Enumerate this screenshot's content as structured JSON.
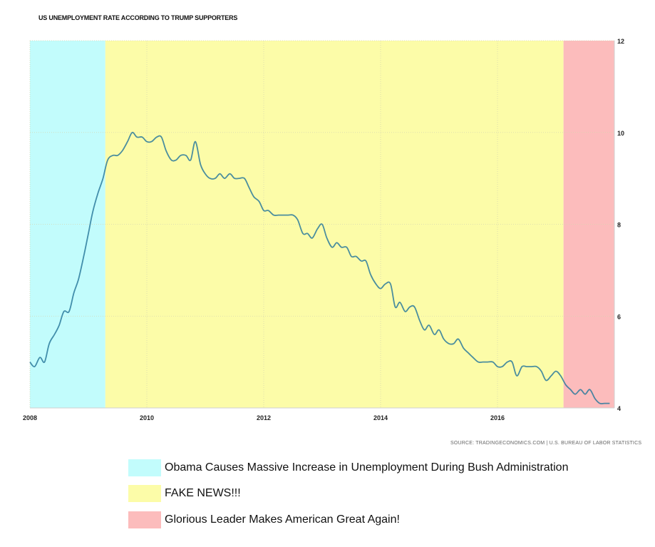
{
  "chart_data": {
    "type": "line",
    "title": "US UNEMPLOYMENT RATE ACCORDING TO TRUMP SUPPORTERS",
    "source": "SOURCE: TRADINGECONOMICS.COM  |  U.S. BUREAU OF LABOR STATISTICS",
    "xlabel": "",
    "ylabel": "",
    "xlim": [
      2008.0,
      2018.0
    ],
    "ylim": [
      4,
      12
    ],
    "x_ticks": [
      "2008",
      "2010",
      "2012",
      "2014",
      "2016"
    ],
    "y_ticks": [
      "4",
      "6",
      "8",
      "10",
      "12"
    ],
    "y_axis_side": "right",
    "grid": true,
    "series": [
      {
        "points": [
          [
            2008.0,
            5.0
          ],
          [
            2008.08,
            4.9
          ],
          [
            2008.17,
            5.1
          ],
          [
            2008.25,
            5.0
          ],
          [
            2008.33,
            5.4
          ],
          [
            2008.42,
            5.6
          ],
          [
            2008.5,
            5.8
          ],
          [
            2008.58,
            6.1
          ],
          [
            2008.67,
            6.1
          ],
          [
            2008.75,
            6.5
          ],
          [
            2008.83,
            6.8
          ],
          [
            2008.92,
            7.3
          ],
          [
            2009.0,
            7.8
          ],
          [
            2009.08,
            8.3
          ],
          [
            2009.17,
            8.7
          ],
          [
            2009.25,
            9.0
          ],
          [
            2009.33,
            9.4
          ],
          [
            2009.42,
            9.5
          ],
          [
            2009.5,
            9.5
          ],
          [
            2009.58,
            9.6
          ],
          [
            2009.67,
            9.8
          ],
          [
            2009.75,
            10.0
          ],
          [
            2009.83,
            9.9
          ],
          [
            2009.92,
            9.9
          ],
          [
            2010.0,
            9.8
          ],
          [
            2010.08,
            9.8
          ],
          [
            2010.17,
            9.9
          ],
          [
            2010.25,
            9.9
          ],
          [
            2010.33,
            9.6
          ],
          [
            2010.42,
            9.4
          ],
          [
            2010.5,
            9.4
          ],
          [
            2010.58,
            9.5
          ],
          [
            2010.67,
            9.5
          ],
          [
            2010.75,
            9.4
          ],
          [
            2010.83,
            9.8
          ],
          [
            2010.92,
            9.3
          ],
          [
            2011.0,
            9.1
          ],
          [
            2011.08,
            9.0
          ],
          [
            2011.17,
            9.0
          ],
          [
            2011.25,
            9.1
          ],
          [
            2011.33,
            9.0
          ],
          [
            2011.42,
            9.1
          ],
          [
            2011.5,
            9.0
          ],
          [
            2011.58,
            9.0
          ],
          [
            2011.67,
            9.0
          ],
          [
            2011.75,
            8.8
          ],
          [
            2011.83,
            8.6
          ],
          [
            2011.92,
            8.5
          ],
          [
            2012.0,
            8.3
          ],
          [
            2012.08,
            8.3
          ],
          [
            2012.17,
            8.2
          ],
          [
            2012.25,
            8.2
          ],
          [
            2012.33,
            8.2
          ],
          [
            2012.42,
            8.2
          ],
          [
            2012.5,
            8.2
          ],
          [
            2012.58,
            8.1
          ],
          [
            2012.67,
            7.8
          ],
          [
            2012.75,
            7.8
          ],
          [
            2012.83,
            7.7
          ],
          [
            2012.92,
            7.9
          ],
          [
            2013.0,
            8.0
          ],
          [
            2013.08,
            7.7
          ],
          [
            2013.17,
            7.5
          ],
          [
            2013.25,
            7.6
          ],
          [
            2013.33,
            7.5
          ],
          [
            2013.42,
            7.5
          ],
          [
            2013.5,
            7.3
          ],
          [
            2013.58,
            7.3
          ],
          [
            2013.67,
            7.2
          ],
          [
            2013.75,
            7.2
          ],
          [
            2013.83,
            6.9
          ],
          [
            2013.92,
            6.7
          ],
          [
            2014.0,
            6.6
          ],
          [
            2014.08,
            6.7
          ],
          [
            2014.17,
            6.7
          ],
          [
            2014.25,
            6.2
          ],
          [
            2014.33,
            6.3
          ],
          [
            2014.42,
            6.1
          ],
          [
            2014.5,
            6.2
          ],
          [
            2014.58,
            6.2
          ],
          [
            2014.67,
            5.9
          ],
          [
            2014.75,
            5.7
          ],
          [
            2014.83,
            5.8
          ],
          [
            2014.92,
            5.6
          ],
          [
            2015.0,
            5.7
          ],
          [
            2015.08,
            5.5
          ],
          [
            2015.17,
            5.4
          ],
          [
            2015.25,
            5.4
          ],
          [
            2015.33,
            5.5
          ],
          [
            2015.42,
            5.3
          ],
          [
            2015.5,
            5.2
          ],
          [
            2015.58,
            5.1
          ],
          [
            2015.67,
            5.0
          ],
          [
            2015.75,
            5.0
          ],
          [
            2015.83,
            5.0
          ],
          [
            2015.92,
            5.0
          ],
          [
            2016.0,
            4.9
          ],
          [
            2016.08,
            4.9
          ],
          [
            2016.17,
            5.0
          ],
          [
            2016.25,
            5.0
          ],
          [
            2016.33,
            4.7
          ],
          [
            2016.42,
            4.9
          ],
          [
            2016.5,
            4.9
          ],
          [
            2016.58,
            4.9
          ],
          [
            2016.67,
            4.9
          ],
          [
            2016.75,
            4.8
          ],
          [
            2016.83,
            4.6
          ],
          [
            2016.92,
            4.7
          ],
          [
            2017.0,
            4.8
          ],
          [
            2017.08,
            4.7
          ],
          [
            2017.17,
            4.5
          ],
          [
            2017.25,
            4.4
          ],
          [
            2017.33,
            4.3
          ],
          [
            2017.42,
            4.4
          ],
          [
            2017.5,
            4.3
          ],
          [
            2017.58,
            4.4
          ],
          [
            2017.67,
            4.2
          ],
          [
            2017.75,
            4.1
          ],
          [
            2017.83,
            4.1
          ],
          [
            2017.92,
            4.1
          ]
        ],
        "color": "#2c7a9c"
      }
    ],
    "regions": [
      {
        "label": "Obama Causes Massive Increase in Unemployment During Bush Administration",
        "x_start": 2008.0,
        "x_end": 2009.29,
        "color": "#c2fcfc"
      },
      {
        "label": "FAKE NEWS!!!",
        "x_start": 2009.29,
        "x_end": 2017.13,
        "color": "#fcfca8"
      },
      {
        "label": "Glorious Leader Makes American Great Again!",
        "x_start": 2017.13,
        "x_end": 2018.0,
        "color": "#fcbcbc"
      }
    ],
    "legend_position": "bottom"
  }
}
